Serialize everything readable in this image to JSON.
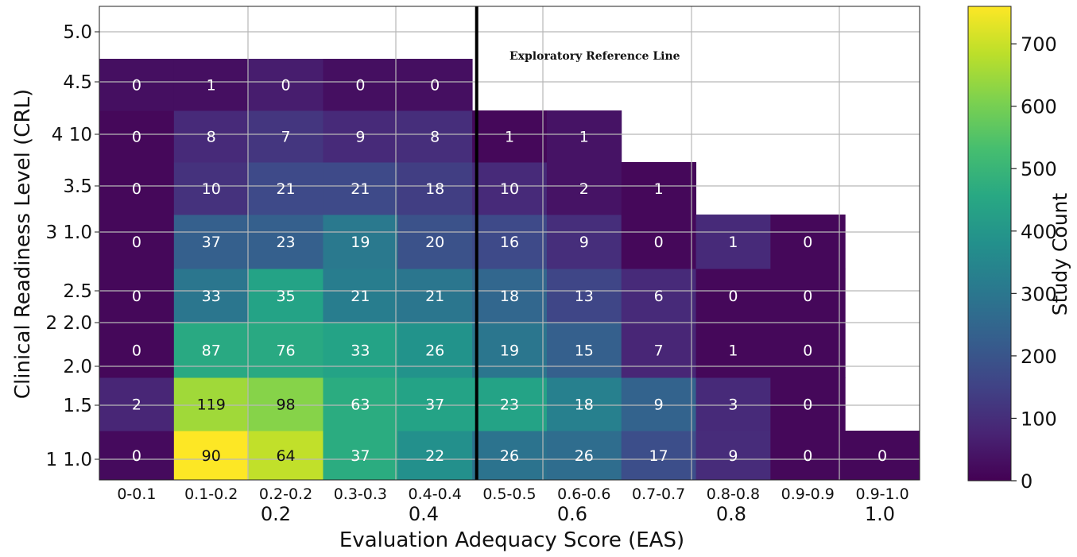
{
  "chart_data": {
    "type": "heatmap",
    "title": "",
    "xlabel": "Evaluation Adequacy Score (EAS)",
    "ylabel": "Clinical Readiness Level (CRL)",
    "colorbar_label": "Study Count",
    "colormap": "viridis",
    "color_range": [
      0,
      760
    ],
    "colorbar_ticks": [
      "0",
      "100",
      "200",
      "300",
      "400",
      "500",
      "600",
      "700"
    ],
    "colorbar_tick_values": [
      0,
      100,
      200,
      300,
      400,
      500,
      600,
      700
    ],
    "x_categories": [
      "0-0.1",
      "0.1-0.2",
      "0.2-0.2",
      "0.3-0.3",
      "0.4-0.4",
      "0.5-0.5",
      "0.6-0.6",
      "0.7-0.7",
      "0.8-0.8",
      "0.9-0.9",
      "0.9-1.0"
    ],
    "x_secondary_ticks": [
      "0.2",
      "0.4",
      "0.6",
      "0.8",
      "1.0"
    ],
    "y_ticks": [
      "1 1.0",
      "1.5",
      "2.0",
      "2 2.0",
      "2.5",
      "3 1.0",
      "3.5",
      "4 10",
      "4.5",
      "5.0"
    ],
    "y_ticks_bottom_to_top_note": "",
    "grid": true,
    "rows": [
      {
        "values": [
          0,
          90,
          64,
          37,
          22,
          26,
          26,
          17,
          9,
          0,
          0
        ]
      },
      {
        "values": [
          2,
          119,
          98,
          63,
          37,
          23,
          18,
          9,
          3,
          0,
          null
        ]
      },
      {
        "values": [
          0,
          87,
          76,
          33,
          26,
          19,
          15,
          7,
          1,
          0,
          null
        ]
      },
      {
        "values": [
          0,
          33,
          35,
          21,
          21,
          18,
          13,
          6,
          0,
          0,
          null
        ]
      },
      {
        "values": [
          0,
          37,
          23,
          19,
          20,
          16,
          9,
          0,
          1,
          0,
          null
        ]
      },
      {
        "values": [
          0,
          10,
          21,
          21,
          18,
          10,
          2,
          1,
          null,
          null,
          null
        ]
      },
      {
        "values": [
          0,
          8,
          7,
          9,
          8,
          1,
          1,
          null,
          null,
          null,
          null
        ]
      },
      {
        "values": [
          0,
          1,
          0,
          0,
          0,
          null,
          null,
          null,
          null,
          null,
          null
        ]
      }
    ],
    "color_values": [
      [
        20,
        760,
        690,
        470,
        380,
        290,
        270,
        180,
        95,
        15,
        15
      ],
      [
        80,
        650,
        620,
        470,
        440,
        440,
        330,
        240,
        90,
        15,
        null
      ],
      [
        15,
        460,
        460,
        440,
        390,
        300,
        230,
        80,
        15,
        15,
        null
      ],
      [
        15,
        300,
        440,
        320,
        300,
        250,
        160,
        90,
        15,
        15,
        null
      ],
      [
        15,
        230,
        230,
        310,
        190,
        170,
        100,
        15,
        90,
        15,
        null
      ],
      [
        15,
        110,
        170,
        170,
        140,
        90,
        40,
        15,
        null,
        null,
        null
      ],
      [
        15,
        90,
        120,
        90,
        100,
        15,
        40,
        null,
        null,
        null,
        null
      ],
      [
        30,
        30,
        60,
        30,
        30,
        null,
        null,
        null,
        null,
        null,
        null
      ]
    ],
    "reference_line": {
      "label": "Exploratory Reference Line",
      "x_category_index": 5
    }
  }
}
